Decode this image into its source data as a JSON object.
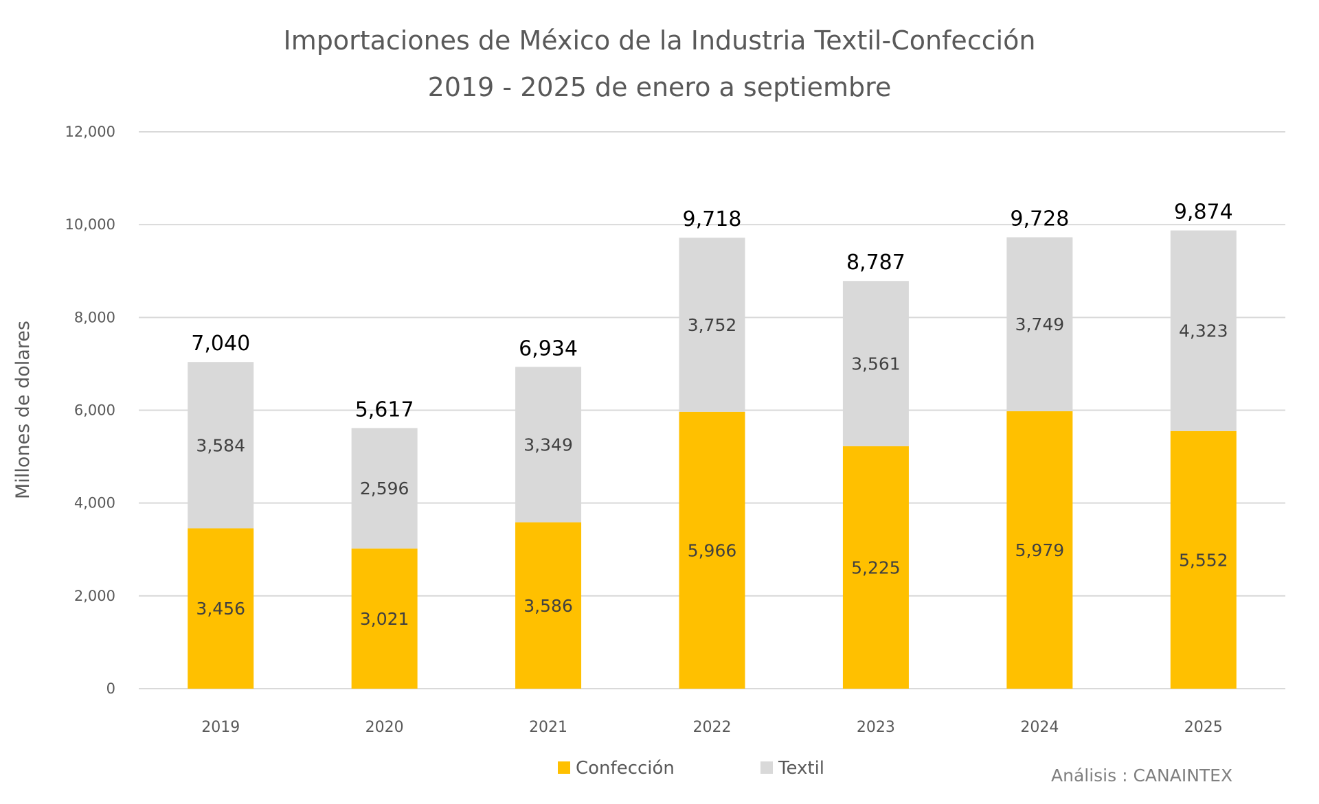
{
  "chart_data": {
    "type": "bar",
    "stacked": true,
    "title": "Importaciones de México de la Industria Textil-Confección",
    "subtitle": "2019 - 2025 de enero a septiembre",
    "xlabel": "",
    "ylabel": "Millones de dolares",
    "ylim": [
      0,
      12000
    ],
    "yticks": [
      0,
      2000,
      4000,
      6000,
      8000,
      10000,
      12000
    ],
    "ytick_labels": [
      "0",
      "2,000",
      "4,000",
      "6,000",
      "8,000",
      "10,000",
      "12,000"
    ],
    "grid": true,
    "categories": [
      "2019",
      "2020",
      "2021",
      "2022",
      "2023",
      "2024",
      "2025"
    ],
    "series": [
      {
        "name": "Confección",
        "color": "#FFC000",
        "values": [
          3456,
          3021,
          3586,
          5966,
          5225,
          5979,
          5552
        ],
        "labels": [
          "3,456",
          "3,021",
          "3,586",
          "5,966",
          "5,225",
          "5,979",
          "5,552"
        ]
      },
      {
        "name": "Textil",
        "color": "#D9D9D9",
        "values": [
          3584,
          2596,
          3349,
          3752,
          3561,
          3749,
          4323
        ],
        "labels": [
          "3,584",
          "2,596",
          "3,349",
          "3,752",
          "3,561",
          "3,749",
          "4,323"
        ]
      }
    ],
    "totals": [
      7040,
      5617,
      6934,
      9718,
      8787,
      9728,
      9874
    ],
    "total_labels": [
      "7,040",
      "5,617",
      "6,934",
      "9,718",
      "8,787",
      "9,728",
      "9,874"
    ],
    "legend": [
      "Confección",
      "Textil"
    ],
    "legend_position": "bottom",
    "source_note": "Análisis : CANAINTEX"
  }
}
